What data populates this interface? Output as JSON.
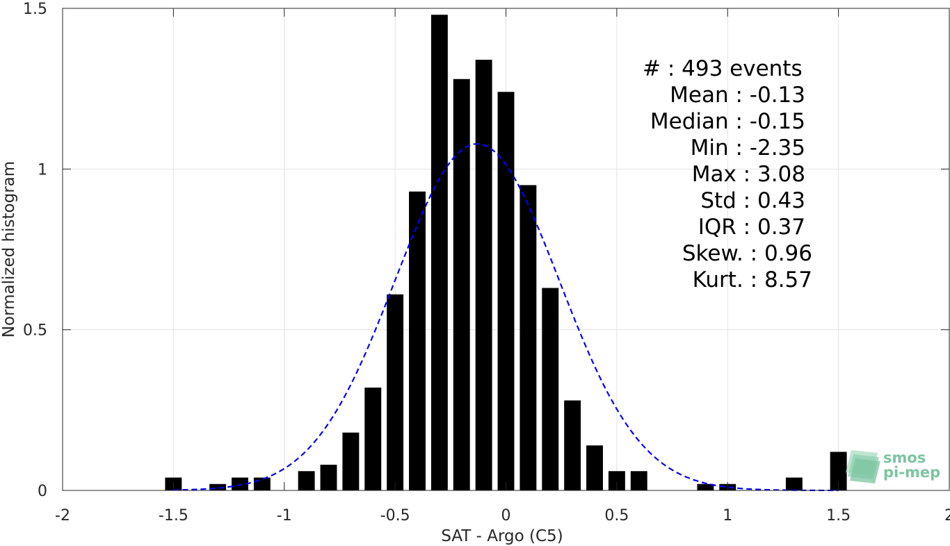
{
  "chart_data": {
    "type": "bar",
    "xlabel": "SAT - Argo (C5)",
    "ylabel": "Normalized histogram",
    "xlim": [
      -2,
      2
    ],
    "ylim": [
      0,
      1.5
    ],
    "xticks": [
      -2,
      -1.5,
      -1,
      -0.5,
      0,
      0.5,
      1,
      1.5,
      2
    ],
    "xtick_labels": [
      "-2",
      "-1.5",
      "-1",
      "-0.5",
      "0",
      "0.5",
      "1",
      "1.5",
      "2"
    ],
    "yticks": [
      0,
      0.5,
      1,
      1.5
    ],
    "ytick_labels": [
      "0",
      "0.5",
      "1",
      "1.5"
    ],
    "grid": true,
    "bar_color": "#000000",
    "bar_width": 0.075,
    "bars": [
      {
        "x": -1.5,
        "y": 0.04
      },
      {
        "x": -1.3,
        "y": 0.02
      },
      {
        "x": -1.2,
        "y": 0.04
      },
      {
        "x": -1.1,
        "y": 0.04
      },
      {
        "x": -0.9,
        "y": 0.06
      },
      {
        "x": -0.8,
        "y": 0.08
      },
      {
        "x": -0.7,
        "y": 0.18
      },
      {
        "x": -0.6,
        "y": 0.32
      },
      {
        "x": -0.5,
        "y": 0.61
      },
      {
        "x": -0.4,
        "y": 0.93
      },
      {
        "x": -0.3,
        "y": 1.48
      },
      {
        "x": -0.2,
        "y": 1.28
      },
      {
        "x": -0.1,
        "y": 1.34
      },
      {
        "x": 0.0,
        "y": 1.24
      },
      {
        "x": 0.1,
        "y": 0.95
      },
      {
        "x": 0.2,
        "y": 0.63
      },
      {
        "x": 0.3,
        "y": 0.28
      },
      {
        "x": 0.4,
        "y": 0.14
      },
      {
        "x": 0.5,
        "y": 0.06
      },
      {
        "x": 0.6,
        "y": 0.06
      },
      {
        "x": 0.9,
        "y": 0.02
      },
      {
        "x": 1.0,
        "y": 0.02
      },
      {
        "x": 1.3,
        "y": 0.04
      },
      {
        "x": 1.5,
        "y": 0.12
      }
    ],
    "fit_curve": {
      "style": "dashed",
      "color": "#0000ff",
      "mean": -0.13,
      "std": 0.37,
      "x_range": [
        -1.5,
        1.5
      ]
    },
    "stats": [
      "#  : 493 events",
      "Mean : -0.13",
      "Median : -0.15",
      "Min : -2.35",
      "Max : 3.08",
      "Std : 0.43",
      "IQR : 0.37",
      "Skew. : 0.96",
      "Kurt. : 8.57"
    ]
  },
  "logo": {
    "line1": "smos",
    "line2": "pi-mep"
  },
  "colors": {
    "axis": "#262626",
    "grid": "#e2e2e2",
    "logo": "#7cc4a0"
  }
}
